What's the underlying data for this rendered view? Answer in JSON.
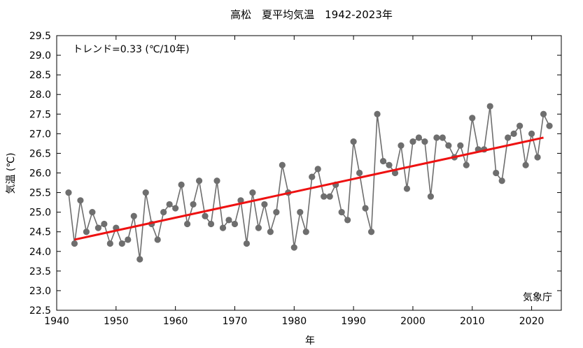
{
  "chart_data": {
    "type": "line",
    "title": "高松　夏平均気温　1942-2023年",
    "xlabel": "年",
    "ylabel": "気温 (℃)",
    "trend_label": "トレンド=0.33 (℃/10年)",
    "source_label": "気象庁",
    "xlim": [
      1940,
      2025
    ],
    "ylim": [
      22.5,
      29.5
    ],
    "x_ticks": [
      1940,
      1950,
      1960,
      1970,
      1980,
      1990,
      2000,
      2010,
      2020
    ],
    "y_ticks": [
      "22.5",
      "23.0",
      "23.5",
      "24.0",
      "24.5",
      "25.0",
      "25.5",
      "26.0",
      "26.5",
      "27.0",
      "27.5",
      "28.0",
      "28.5",
      "29.0",
      "29.5"
    ],
    "grid": false,
    "x": [
      1942,
      1943,
      1944,
      1945,
      1946,
      1947,
      1948,
      1949,
      1950,
      1951,
      1952,
      1953,
      1954,
      1955,
      1956,
      1957,
      1958,
      1959,
      1960,
      1961,
      1962,
      1963,
      1964,
      1965,
      1966,
      1967,
      1968,
      1969,
      1970,
      1971,
      1972,
      1973,
      1974,
      1975,
      1976,
      1977,
      1978,
      1979,
      1980,
      1981,
      1982,
      1983,
      1984,
      1985,
      1986,
      1987,
      1988,
      1989,
      1990,
      1991,
      1992,
      1993,
      1994,
      1995,
      1996,
      1997,
      1998,
      1999,
      2000,
      2001,
      2002,
      2003,
      2004,
      2005,
      2006,
      2007,
      2008,
      2009,
      2010,
      2011,
      2012,
      2013,
      2014,
      2015,
      2016,
      2017,
      2018,
      2019,
      2020,
      2021,
      2022,
      2023
    ],
    "series": [
      {
        "values": [
          25.5,
          24.2,
          25.3,
          24.5,
          25.0,
          24.6,
          24.7,
          24.2,
          24.6,
          24.2,
          24.3,
          24.9,
          23.8,
          25.5,
          24.7,
          24.3,
          25.0,
          25.2,
          25.1,
          25.7,
          24.7,
          25.2,
          25.8,
          24.9,
          24.7,
          25.8,
          24.6,
          24.8,
          24.7,
          25.3,
          24.2,
          25.5,
          24.6,
          25.2,
          24.5,
          25.0,
          26.2,
          25.5,
          24.1,
          25.0,
          24.5,
          25.9,
          26.1,
          25.4,
          25.4,
          25.7,
          25.0,
          24.8,
          26.8,
          26.0,
          25.1,
          24.5,
          27.5,
          26.3,
          26.2,
          26.0,
          26.7,
          25.6,
          26.8,
          26.9,
          26.8,
          25.4,
          26.9,
          26.9,
          26.7,
          26.4,
          26.7,
          26.2,
          27.4,
          26.6,
          26.6,
          27.7,
          26.0,
          25.8,
          26.9,
          27.0,
          27.2,
          26.2,
          27.0,
          26.4,
          27.5,
          27.2
        ],
        "color": "#6e6e6e"
      }
    ],
    "trend": {
      "x": [
        1943,
        2022
      ],
      "y": [
        24.3,
        26.9
      ],
      "color": "#ee1111"
    }
  }
}
